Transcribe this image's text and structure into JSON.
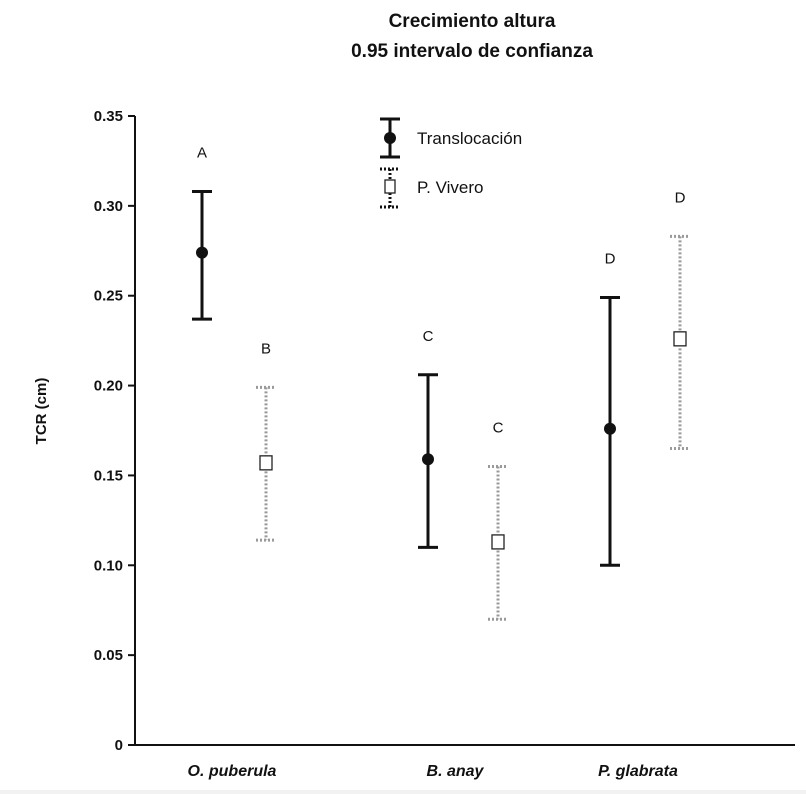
{
  "chart_data": {
    "type": "scatter",
    "title": [
      "Crecimiento altura",
      "0.95 intervalo de confianza"
    ],
    "ylabel": "TCR (cm)",
    "xlabel": "",
    "ylim": [
      0,
      0.35
    ],
    "yticks": [
      {
        "value": 0,
        "label": "0"
      },
      {
        "value": 0.05,
        "label": "0.05"
      },
      {
        "value": 0.1,
        "label": "0.10"
      },
      {
        "value": 0.15,
        "label": "0.15"
      },
      {
        "value": 0.2,
        "label": "0.20"
      },
      {
        "value": 0.25,
        "label": "0.25"
      },
      {
        "value": 0.3,
        "label": "0.30"
      },
      {
        "value": 0.35,
        "label": "0.35"
      }
    ],
    "categories": [
      "O. puberula",
      "B. anay",
      "P. glabrata"
    ],
    "legend_position": "top-center",
    "series": [
      {
        "name": "Translocación",
        "marker": "filled-circle",
        "line": "solid",
        "color": "#111111",
        "points": [
          {
            "mean": 0.274,
            "lower": 0.237,
            "upper": 0.308,
            "letter": "A"
          },
          {
            "mean": 0.159,
            "lower": 0.11,
            "upper": 0.206,
            "letter": "C"
          },
          {
            "mean": 0.176,
            "lower": 0.1,
            "upper": 0.249,
            "letter": "D"
          }
        ]
      },
      {
        "name": "P. Vivero",
        "marker": "open-square",
        "line": "dotted",
        "color": "#9a9a9a",
        "points": [
          {
            "mean": 0.157,
            "lower": 0.114,
            "upper": 0.199,
            "letter": "B"
          },
          {
            "mean": 0.113,
            "lower": 0.07,
            "upper": 0.155,
            "letter": "C"
          },
          {
            "mean": 0.226,
            "lower": 0.165,
            "upper": 0.283,
            "letter": "D"
          }
        ]
      }
    ]
  }
}
